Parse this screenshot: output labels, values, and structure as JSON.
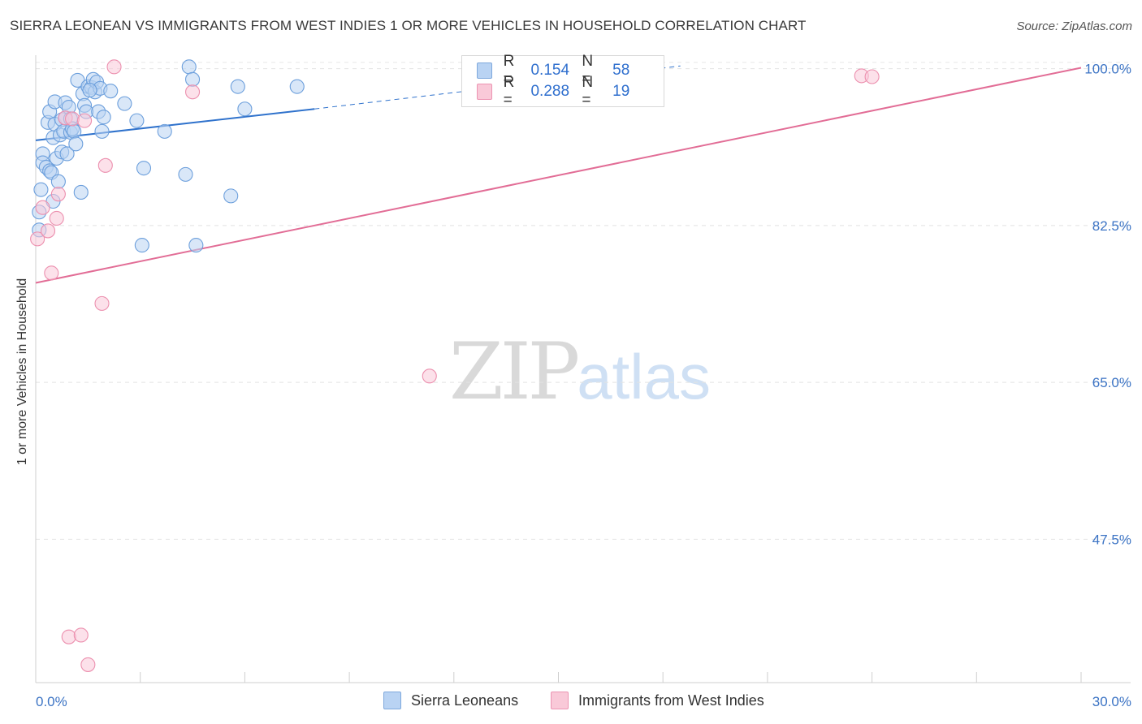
{
  "title": "SIERRA LEONEAN VS IMMIGRANTS FROM WEST INDIES 1 OR MORE VEHICLES IN HOUSEHOLD CORRELATION CHART",
  "source": "Source: ZipAtlas.com",
  "watermark": {
    "zip": "ZIP",
    "atlas": "atlas"
  },
  "legend": {
    "r_label": "R =",
    "n_label": "N =",
    "rows": [
      {
        "r": "0.154",
        "n": "58",
        "color": "#b9d3f3",
        "border": "#7ea8dc"
      },
      {
        "r": "0.288",
        "n": "19",
        "color": "#f9c9d8",
        "border": "#ec94b2"
      }
    ]
  },
  "bottom_legend": [
    {
      "label": "Sierra Leoneans",
      "color": "#b9d3f3",
      "border": "#7ea8dc"
    },
    {
      "label": "Immigrants from West Indies",
      "color": "#f9c9d8",
      "border": "#ec94b2"
    }
  ],
  "chart_data": {
    "type": "scatter",
    "title": "SIERRA LEONEAN VS IMMIGRANTS FROM WEST INDIES 1 OR MORE VEHICLES IN HOUSEHOLD CORRELATION CHART",
    "xlabel": "",
    "ylabel": "1 or more Vehicles in Household",
    "xlim": [
      0,
      30
    ],
    "ylim": [
      31.5,
      101.5
    ],
    "x_tick_labels": [
      "0.0%",
      "30.0%"
    ],
    "y_ticks": [
      100.0,
      82.5,
      65.0,
      47.5
    ],
    "y_tick_labels": [
      "100.0%",
      "82.5%",
      "65.0%",
      "47.5%"
    ],
    "legend_position": "top-center",
    "series": [
      {
        "name": "Sierra Leoneans",
        "color": "#6c9fdc",
        "fill": "#b9d3f3",
        "line_color": "#2f72cc",
        "trend": {
          "x": [
            0.0,
            8.0
          ],
          "y": [
            92.0,
            95.5
          ]
        },
        "trend_dashed": {
          "x": [
            8.0,
            18.5
          ],
          "y": [
            95.5,
            100.3
          ]
        },
        "points": [
          [
            0.1,
            84.0
          ],
          [
            0.1,
            82.0
          ],
          [
            0.15,
            86.5
          ],
          [
            0.2,
            90.5
          ],
          [
            0.2,
            89.5
          ],
          [
            0.3,
            89.0
          ],
          [
            0.35,
            94.0
          ],
          [
            0.4,
            88.6
          ],
          [
            0.4,
            95.2
          ],
          [
            0.45,
            88.4
          ],
          [
            0.5,
            92.3
          ],
          [
            0.5,
            85.2
          ],
          [
            0.55,
            96.3
          ],
          [
            0.55,
            93.8
          ],
          [
            0.6,
            90.0
          ],
          [
            0.65,
            87.4
          ],
          [
            0.7,
            92.6
          ],
          [
            0.75,
            90.7
          ],
          [
            0.75,
            94.3
          ],
          [
            0.8,
            93.0
          ],
          [
            0.85,
            94.5
          ],
          [
            0.85,
            96.2
          ],
          [
            0.9,
            90.5
          ],
          [
            0.95,
            95.7
          ],
          [
            1.0,
            94.4
          ],
          [
            1.0,
            92.9
          ],
          [
            1.05,
            93.3
          ],
          [
            1.1,
            93.0
          ],
          [
            1.15,
            91.6
          ],
          [
            1.2,
            98.7
          ],
          [
            1.3,
            86.2
          ],
          [
            1.35,
            97.2
          ],
          [
            1.4,
            95.9
          ],
          [
            1.45,
            95.2
          ],
          [
            1.5,
            98.0
          ],
          [
            1.6,
            97.9
          ],
          [
            1.65,
            98.8
          ],
          [
            1.7,
            97.4
          ],
          [
            1.75,
            98.5
          ],
          [
            1.8,
            95.2
          ],
          [
            1.85,
            97.8
          ],
          [
            1.9,
            93.0
          ],
          [
            1.95,
            94.6
          ],
          [
            2.15,
            97.5
          ],
          [
            2.55,
            96.1
          ],
          [
            2.9,
            94.2
          ],
          [
            3.05,
            80.3
          ],
          [
            3.1,
            88.9
          ],
          [
            3.7,
            93.0
          ],
          [
            4.3,
            88.2
          ],
          [
            4.4,
            100.2
          ],
          [
            4.5,
            98.8
          ],
          [
            4.6,
            80.3
          ],
          [
            5.6,
            85.8
          ],
          [
            5.8,
            98.0
          ],
          [
            6.0,
            95.5
          ],
          [
            7.5,
            98.0
          ],
          [
            1.55,
            97.6
          ]
        ]
      },
      {
        "name": "Immigrants from West Indies",
        "color": "#ec8fae",
        "fill": "#f9c9d8",
        "line_color": "#e26d96",
        "trend": {
          "x": [
            0.0,
            30.0
          ],
          "y": [
            76.1,
            100.1
          ]
        },
        "points": [
          [
            0.05,
            81.0
          ],
          [
            0.2,
            84.5
          ],
          [
            0.35,
            81.9
          ],
          [
            0.45,
            77.2
          ],
          [
            0.6,
            83.3
          ],
          [
            0.65,
            86.0
          ],
          [
            0.85,
            94.5
          ],
          [
            0.95,
            36.6
          ],
          [
            1.05,
            94.4
          ],
          [
            1.3,
            36.8
          ],
          [
            1.4,
            94.2
          ],
          [
            1.5,
            33.5
          ],
          [
            1.9,
            73.8
          ],
          [
            2.0,
            89.2
          ],
          [
            2.25,
            100.2
          ],
          [
            4.5,
            97.4
          ],
          [
            11.3,
            65.7
          ],
          [
            23.7,
            99.2
          ],
          [
            24.0,
            99.1
          ]
        ]
      }
    ]
  }
}
